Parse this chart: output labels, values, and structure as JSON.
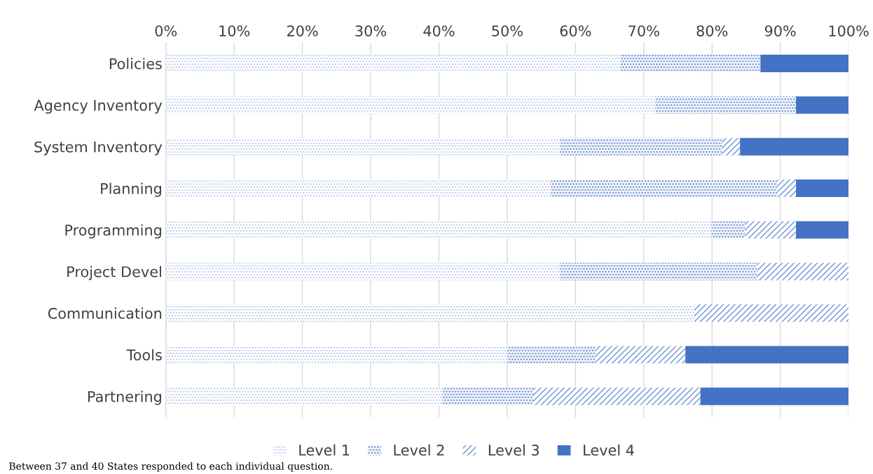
{
  "chart_data": {
    "type": "bar",
    "orientation": "horizontal",
    "stacked": true,
    "categories": [
      "Policies",
      "Agency Inventory",
      "System Inventory",
      "Planning",
      "Programming",
      "Project Devel",
      "Communication",
      "Tools",
      "Partnering"
    ],
    "series": [
      {
        "name": "Level 1",
        "color": "#b4c7e7",
        "values": [
          66.6,
          71.7,
          57.7,
          56.4,
          79.9,
          57.7,
          77.4,
          50.0,
          40.5
        ]
      },
      {
        "name": "Level 2",
        "color": "#8faadc",
        "values": [
          20.5,
          20.6,
          23.8,
          33.2,
          4.9,
          28.9,
          0,
          13.0,
          13.3
        ]
      },
      {
        "name": "Level 3",
        "color": "#6f93d6",
        "values": [
          0,
          0,
          2.6,
          2.7,
          7.5,
          13.4,
          22.6,
          13.1,
          24.5
        ]
      },
      {
        "name": "Level 4",
        "color": "#4472c4",
        "values": [
          12.9,
          7.7,
          15.9,
          7.7,
          7.7,
          0,
          0,
          23.9,
          21.7
        ]
      }
    ],
    "xlim": [
      0,
      100
    ],
    "xticks": [
      {
        "value": 0,
        "label": "0%"
      },
      {
        "value": 10,
        "label": "10%"
      },
      {
        "value": 20,
        "label": "20%"
      },
      {
        "value": 30,
        "label": "30%"
      },
      {
        "value": 40,
        "label": "40%"
      },
      {
        "value": 50,
        "label": "50%"
      },
      {
        "value": 60,
        "label": "60%"
      },
      {
        "value": 70,
        "label": "70%"
      },
      {
        "value": 80,
        "label": "80%"
      },
      {
        "value": 90,
        "label": "90%"
      },
      {
        "value": 100,
        "label": "100%"
      }
    ],
    "grid": "x",
    "legend": "bottom",
    "annotations": [
      "Between 37 and 40 States responded to each individual question."
    ]
  }
}
